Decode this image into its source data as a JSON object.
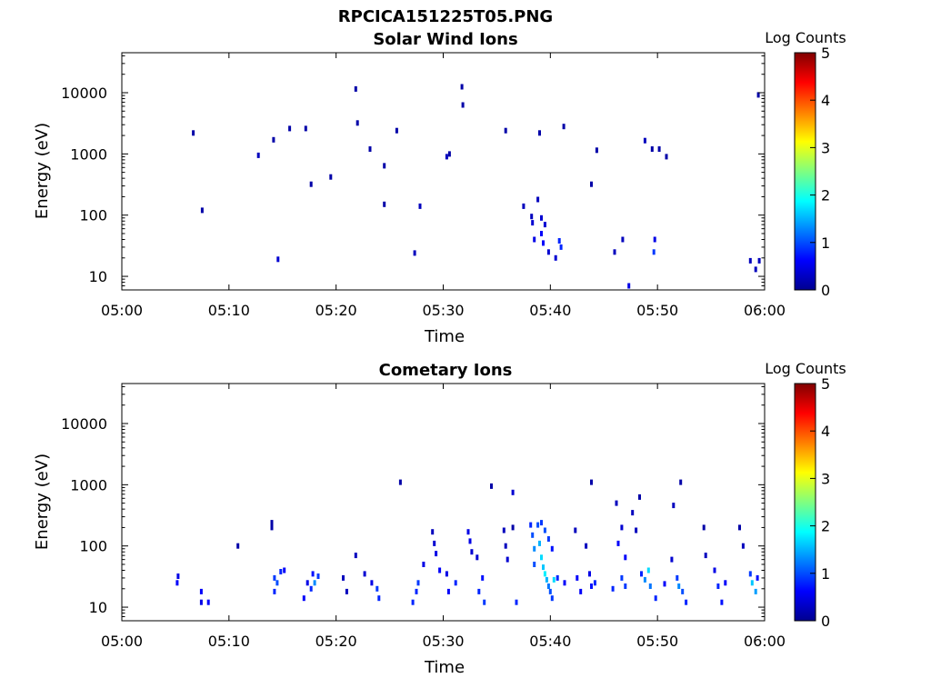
{
  "figure_title": "RPCICA151225T05.PNG",
  "colors": {
    "plot_bg": "#ffffff",
    "axis": "#000000"
  },
  "colormap": {
    "name": "jet",
    "min": 0,
    "max": 5
  },
  "chart_data": [
    {
      "type": "heatmap",
      "title": "Solar Wind Ions",
      "xlabel": "Time",
      "ylabel": "Energy (eV)",
      "colorbar_label": "Log Counts",
      "colorbar_ticks": [
        "0",
        "1",
        "2",
        "3",
        "4",
        "5"
      ],
      "x_tick_labels": [
        "05:00",
        "05:10",
        "05:20",
        "05:30",
        "05:40",
        "05:50",
        "06:00"
      ],
      "y_tick_labels": [
        "10",
        "100",
        "1000",
        "10000"
      ],
      "y_scale": "log",
      "xlim": [
        "05:00",
        "06:00"
      ],
      "ylim": [
        6,
        45000
      ],
      "points": [
        [
          "05:06:40",
          2200,
          0.2
        ],
        [
          "05:07:30",
          120,
          0.2
        ],
        [
          "05:12:45",
          950,
          0.3
        ],
        [
          "05:14:10",
          1700,
          0.2
        ],
        [
          "05:14:35",
          19,
          0.4
        ],
        [
          "05:15:40",
          2600,
          0.2
        ],
        [
          "05:17:10",
          2600,
          0.2
        ],
        [
          "05:17:40",
          320,
          0.2
        ],
        [
          "05:19:30",
          420,
          0.2
        ],
        [
          "05:21:50",
          11500,
          0.2
        ],
        [
          "05:22:00",
          3200,
          0.2
        ],
        [
          "05:23:10",
          1200,
          0.2
        ],
        [
          "05:24:30",
          640,
          0.2
        ],
        [
          "05:24:30",
          150,
          0.2
        ],
        [
          "05:25:40",
          2400,
          0.2
        ],
        [
          "05:27:20",
          24,
          0.3
        ],
        [
          "05:27:50",
          140,
          0.3
        ],
        [
          "05:30:20",
          900,
          0.3
        ],
        [
          "05:30:35",
          1000,
          0.2
        ],
        [
          "05:31:45",
          12500,
          0.2
        ],
        [
          "05:31:50",
          6300,
          0.2
        ],
        [
          "05:35:50",
          2400,
          0.2
        ],
        [
          "05:37:30",
          140,
          0.3
        ],
        [
          "05:38:15",
          95,
          0.3
        ],
        [
          "05:38:20",
          75,
          0.4
        ],
        [
          "05:38:30",
          40,
          0.5
        ],
        [
          "05:38:50",
          180,
          0.3
        ],
        [
          "05:39:00",
          2200,
          0.2
        ],
        [
          "05:39:10",
          90,
          0.4
        ],
        [
          "05:39:10",
          50,
          0.6
        ],
        [
          "05:39:20",
          35,
          0.6
        ],
        [
          "05:39:30",
          70,
          0.4
        ],
        [
          "05:39:50",
          25,
          0.4
        ],
        [
          "05:40:30",
          20,
          0.4
        ],
        [
          "05:40:50",
          38,
          0.8
        ],
        [
          "05:41:00",
          30,
          0.8
        ],
        [
          "05:41:15",
          2800,
          0.2
        ],
        [
          "05:43:50",
          320,
          0.2
        ],
        [
          "05:44:20",
          1150,
          0.2
        ],
        [
          "05:46:00",
          25,
          0.3
        ],
        [
          "05:46:45",
          40,
          0.3
        ],
        [
          "05:47:20",
          7,
          0.5
        ],
        [
          "05:48:50",
          1650,
          0.3
        ],
        [
          "05:49:30",
          1200,
          0.2
        ],
        [
          "05:49:40",
          25,
          0.9
        ],
        [
          "05:49:45",
          40,
          0.5
        ],
        [
          "05:50:10",
          1200,
          0.2
        ],
        [
          "05:50:50",
          900,
          0.2
        ],
        [
          "05:58:40",
          18,
          0.3
        ],
        [
          "05:59:10",
          13,
          0.3
        ],
        [
          "05:59:25",
          9200,
          0.2
        ],
        [
          "05:59:30",
          18,
          0.3
        ]
      ]
    },
    {
      "type": "heatmap",
      "title": "Cometary Ions",
      "xlabel": "Time",
      "ylabel": "Energy (eV)",
      "colorbar_label": "Log Counts",
      "colorbar_ticks": [
        "0",
        "1",
        "2",
        "3",
        "4",
        "5"
      ],
      "x_tick_labels": [
        "05:00",
        "05:10",
        "05:20",
        "05:30",
        "05:40",
        "05:50",
        "06:00"
      ],
      "y_tick_labels": [
        "10",
        "100",
        "1000",
        "10000"
      ],
      "y_scale": "log",
      "xlim": [
        "05:00",
        "06:00"
      ],
      "ylim": [
        6,
        45000
      ],
      "points": [
        [
          "05:05:10",
          25,
          0.6
        ],
        [
          "05:05:15",
          32,
          0.5
        ],
        [
          "05:07:25",
          12,
          0.5
        ],
        [
          "05:07:25",
          18,
          0.6
        ],
        [
          "05:08:05",
          12,
          0.6
        ],
        [
          "05:10:50",
          100,
          0.2
        ],
        [
          "05:14:00",
          240,
          0.2
        ],
        [
          "05:14:00",
          200,
          0.2
        ],
        [
          "05:14:15",
          18,
          0.8
        ],
        [
          "05:14:15",
          30,
          0.9
        ],
        [
          "05:14:30",
          25,
          1.0
        ],
        [
          "05:14:50",
          38,
          0.8
        ],
        [
          "05:15:10",
          40,
          0.6
        ],
        [
          "05:17:00",
          14,
          0.6
        ],
        [
          "05:17:20",
          25,
          0.5
        ],
        [
          "05:17:40",
          20,
          0.8
        ],
        [
          "05:17:50",
          35,
          0.7
        ],
        [
          "05:18:00",
          25,
          1.3
        ],
        [
          "05:18:20",
          32,
          0.9
        ],
        [
          "05:20:40",
          30,
          0.3
        ],
        [
          "05:21:00",
          18,
          0.3
        ],
        [
          "05:21:50",
          70,
          0.3
        ],
        [
          "05:22:40",
          35,
          0.4
        ],
        [
          "05:23:20",
          25,
          0.5
        ],
        [
          "05:23:50",
          20,
          0.9
        ],
        [
          "05:24:00",
          14,
          0.8
        ],
        [
          "05:26:00",
          1100,
          0.2
        ],
        [
          "05:27:10",
          12,
          0.8
        ],
        [
          "05:27:30",
          18,
          0.8
        ],
        [
          "05:27:40",
          25,
          0.9
        ],
        [
          "05:28:10",
          50,
          0.5
        ],
        [
          "05:29:00",
          170,
          0.3
        ],
        [
          "05:29:10",
          110,
          0.4
        ],
        [
          "05:29:20",
          75,
          0.5
        ],
        [
          "05:29:40",
          40,
          0.6
        ],
        [
          "05:30:20",
          35,
          0.5
        ],
        [
          "05:30:30",
          18,
          0.6
        ],
        [
          "05:31:10",
          25,
          0.8
        ],
        [
          "05:32:20",
          170,
          0.5
        ],
        [
          "05:32:30",
          120,
          0.5
        ],
        [
          "05:32:40",
          80,
          0.4
        ],
        [
          "05:33:10",
          65,
          0.4
        ],
        [
          "05:33:20",
          18,
          0.8
        ],
        [
          "05:33:40",
          30,
          0.7
        ],
        [
          "05:33:50",
          12,
          0.9
        ],
        [
          "05:34:30",
          950,
          0.2
        ],
        [
          "05:35:40",
          180,
          0.3
        ],
        [
          "05:35:50",
          100,
          0.3
        ],
        [
          "05:36:00",
          60,
          0.4
        ],
        [
          "05:36:30",
          750,
          0.4
        ],
        [
          "05:36:30",
          200,
          0.2
        ],
        [
          "05:36:50",
          12,
          0.8
        ],
        [
          "05:38:10",
          220,
          0.8
        ],
        [
          "05:38:20",
          150,
          1.0
        ],
        [
          "05:38:30",
          90,
          1.3
        ],
        [
          "05:38:30",
          50,
          1.0
        ],
        [
          "05:38:50",
          220,
          1.0
        ],
        [
          "05:39:00",
          110,
          1.5
        ],
        [
          "05:39:10",
          65,
          1.7
        ],
        [
          "05:39:20",
          45,
          1.6
        ],
        [
          "05:39:30",
          35,
          1.8
        ],
        [
          "05:39:40",
          28,
          1.5
        ],
        [
          "05:39:50",
          22,
          1.2
        ],
        [
          "05:40:00",
          18,
          1.0
        ],
        [
          "05:40:10",
          14,
          0.9
        ],
        [
          "05:39:10",
          240,
          0.9
        ],
        [
          "05:39:30",
          180,
          1.0
        ],
        [
          "05:39:50",
          130,
          0.9
        ],
        [
          "05:40:10",
          90,
          0.7
        ],
        [
          "05:40:20",
          28,
          1.7
        ],
        [
          "05:40:40",
          30,
          0.8
        ],
        [
          "05:41:20",
          25,
          0.6
        ],
        [
          "05:42:20",
          180,
          0.3
        ],
        [
          "05:42:30",
          30,
          0.6
        ],
        [
          "05:42:50",
          18,
          0.6
        ],
        [
          "05:43:20",
          100,
          0.3
        ],
        [
          "05:43:40",
          35,
          0.5
        ],
        [
          "05:43:50",
          1100,
          0.2
        ],
        [
          "05:43:50",
          22,
          0.7
        ],
        [
          "05:44:10",
          25,
          0.8
        ],
        [
          "05:45:50",
          20,
          0.8
        ],
        [
          "05:46:10",
          500,
          0.3
        ],
        [
          "05:46:20",
          110,
          0.6
        ],
        [
          "05:46:40",
          200,
          0.4
        ],
        [
          "05:46:40",
          30,
          0.9
        ],
        [
          "05:47:00",
          22,
          0.9
        ],
        [
          "05:47:00",
          65,
          0.6
        ],
        [
          "05:47:40",
          350,
          0.3
        ],
        [
          "05:48:00",
          180,
          0.3
        ],
        [
          "05:48:20",
          630,
          0.2
        ],
        [
          "05:48:30",
          35,
          0.8
        ],
        [
          "05:48:50",
          28,
          1.3
        ],
        [
          "05:49:10",
          40,
          1.7
        ],
        [
          "05:49:20",
          22,
          1.2
        ],
        [
          "05:49:50",
          14,
          0.8
        ],
        [
          "05:50:40",
          24,
          0.6
        ],
        [
          "05:51:20",
          60,
          0.4
        ],
        [
          "05:51:30",
          460,
          0.3
        ],
        [
          "05:51:50",
          30,
          0.9
        ],
        [
          "05:52:00",
          22,
          1.3
        ],
        [
          "05:52:10",
          1100,
          0.2
        ],
        [
          "05:52:20",
          18,
          1.0
        ],
        [
          "05:52:40",
          12,
          0.8
        ],
        [
          "05:54:20",
          200,
          0.2
        ],
        [
          "05:54:30",
          70,
          0.3
        ],
        [
          "05:55:20",
          40,
          0.5
        ],
        [
          "05:55:40",
          22,
          0.8
        ],
        [
          "05:56:00",
          12,
          0.7
        ],
        [
          "05:56:20",
          25,
          0.6
        ],
        [
          "05:57:40",
          200,
          0.2
        ],
        [
          "05:58:00",
          100,
          0.3
        ],
        [
          "05:58:40",
          35,
          0.9
        ],
        [
          "05:58:50",
          25,
          1.6
        ],
        [
          "05:59:10",
          18,
          1.4
        ],
        [
          "05:59:20",
          30,
          0.7
        ]
      ]
    }
  ]
}
